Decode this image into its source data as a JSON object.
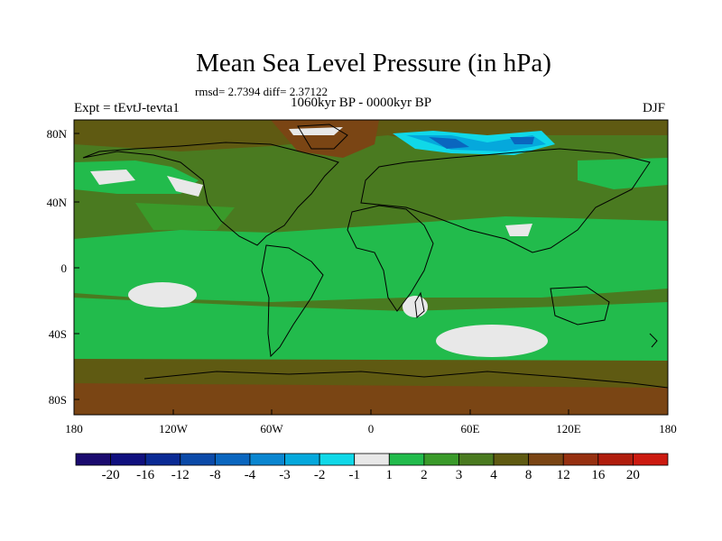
{
  "header": {
    "title": "Mean Sea Level Pressure (in hPa)",
    "stats": "rmsd= 2.7394  diff= 2.37122",
    "experiment": "Expt = tEvtJ-tevta1",
    "period": "1060kyr BP - 0000kyr BP",
    "season": "DJF"
  },
  "axes": {
    "y_labels": [
      "80N",
      "40N",
      "0",
      "40S",
      "80S"
    ],
    "x_labels": [
      "180",
      "120W",
      "60W",
      "0",
      "60E",
      "120E",
      "180"
    ]
  },
  "colorbar": {
    "labels": [
      "-20",
      "-16",
      "-12",
      "-8",
      "-4",
      "-3",
      "-2",
      "-1",
      "1",
      "2",
      "3",
      "4",
      "8",
      "12",
      "16",
      "20"
    ],
    "colors": [
      "#1a0a6e",
      "#10107e",
      "#0a2a94",
      "#0b4aa8",
      "#0a66bf",
      "#0a86d0",
      "#05a8dc",
      "#10d8e8",
      "#e8e8e8",
      "#22bb4c",
      "#3a9a2a",
      "#4a7a20",
      "#5f5a12",
      "#7a4514",
      "#963010",
      "#b01d0d",
      "#cc1a10"
    ]
  }
}
